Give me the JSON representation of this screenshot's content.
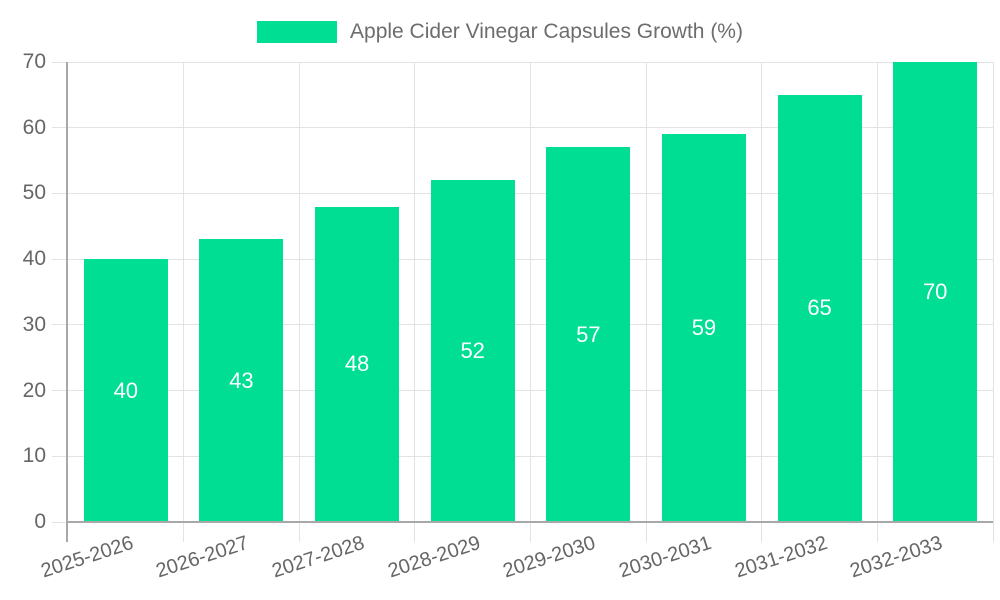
{
  "legend": {
    "label": "Apple Cider Vinegar Capsules Growth (%)"
  },
  "colors": {
    "bar": "#00DE93",
    "grid": "#e3e3e3",
    "axis": "#a8a8a8",
    "tick_text": "#666666",
    "bar_value_text": "#ffffff",
    "background": "#ffffff"
  },
  "chart_data": {
    "type": "bar",
    "title": "",
    "legend": "Apple Cider Vinegar Capsules Growth (%)",
    "legend_position": "top",
    "categories": [
      "2025-2026",
      "2026-2027",
      "2027-2028",
      "2028-2029",
      "2029-2030",
      "2030-2031",
      "2031-2032",
      "2032-2033"
    ],
    "values": [
      40,
      43,
      48,
      52,
      57,
      59,
      65,
      70
    ],
    "bar_labels": [
      40,
      43,
      48,
      52,
      57,
      59,
      65,
      70
    ],
    "xlabel": "",
    "ylabel": "",
    "ylim": [
      0,
      70
    ],
    "yticks": [
      0,
      10,
      20,
      30,
      40,
      50,
      60,
      70
    ],
    "grid": true,
    "x_tick_rotation_deg": -18
  }
}
